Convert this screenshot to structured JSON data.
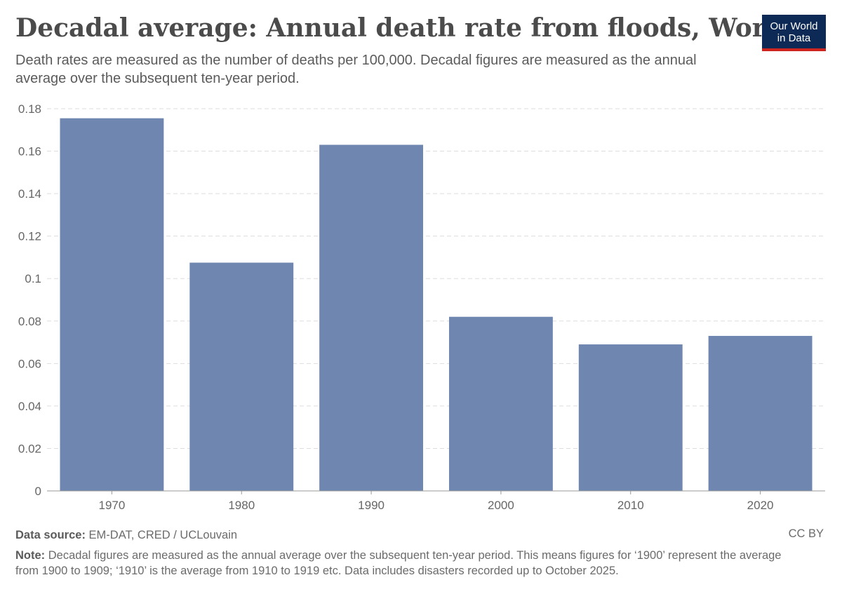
{
  "title": "Decadal average: Annual death rate from floods, World",
  "subtitle": "Death rates are measured as the number of deaths per 100,000. Decadal figures are measured as the annual average over the subsequent ten-year period.",
  "logo": {
    "line1": "Our World",
    "line2": "in Data"
  },
  "footer": {
    "source_label": "Data source:",
    "source_text": "EM-DAT, CRED / UCLouvain",
    "license": "CC BY",
    "note_label": "Note:",
    "note_text": "Decadal figures are measured as the annual average over the subsequent ten-year period. This means figures for ‘1900’ represent the average from 1900 to 1909; ‘1910’ is the average from 1910 to 1919 etc. Data includes disasters recorded up to October 2025."
  },
  "colors": {
    "bar": "#6f87b0",
    "grid": "#dddddd",
    "axis": "#999999",
    "text": "#666666",
    "logo_bg": "#0c2a55",
    "logo_accent": "#ce261e"
  },
  "chart_data": {
    "type": "bar",
    "categories": [
      "1970",
      "1980",
      "1990",
      "2000",
      "2010",
      "2020"
    ],
    "values": [
      0.1755,
      0.1075,
      0.163,
      0.082,
      0.069,
      0.073
    ],
    "ylim": [
      0,
      0.18
    ],
    "yticks": [
      "0",
      "0.02",
      "0.04",
      "0.06",
      "0.08",
      "0.1",
      "0.12",
      "0.14",
      "0.16",
      "0.18"
    ],
    "grid": true,
    "xlabel": "",
    "ylabel": ""
  }
}
